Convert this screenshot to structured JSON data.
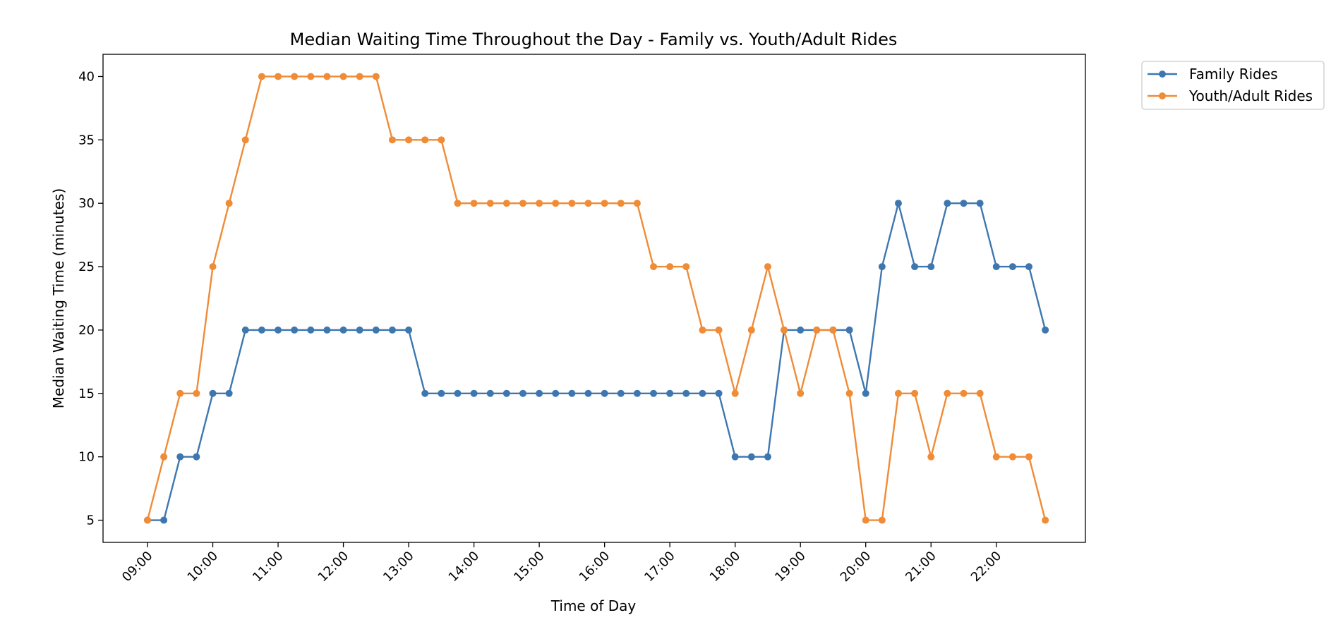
{
  "chart_data": {
    "type": "line",
    "title": "Median Waiting Time Throughout the Day - Family vs. Youth/Adult Rides",
    "xlabel": "Time of Day",
    "ylabel": "Median Waiting Time (minutes)",
    "x": [
      "09:00",
      "09:15",
      "09:30",
      "09:45",
      "10:00",
      "10:15",
      "10:30",
      "10:45",
      "11:00",
      "11:15",
      "11:30",
      "11:45",
      "12:00",
      "12:15",
      "12:30",
      "12:45",
      "13:00",
      "13:15",
      "13:30",
      "13:45",
      "14:00",
      "14:15",
      "14:30",
      "14:45",
      "15:00",
      "15:15",
      "15:30",
      "15:45",
      "16:00",
      "16:15",
      "16:30",
      "16:45",
      "17:00",
      "17:15",
      "17:30",
      "17:45",
      "18:00",
      "18:15",
      "18:30",
      "18:45",
      "19:00",
      "19:15",
      "19:30",
      "19:45",
      "20:00",
      "20:15",
      "20:30",
      "20:45",
      "21:00",
      "21:15",
      "21:30",
      "21:45",
      "22:00",
      "22:15",
      "22:30",
      "22:45"
    ],
    "x_ticks": [
      "09:00",
      "10:00",
      "11:00",
      "12:00",
      "13:00",
      "14:00",
      "15:00",
      "16:00",
      "17:00",
      "18:00",
      "19:00",
      "20:00",
      "21:00",
      "22:00"
    ],
    "y_ticks": [
      5,
      10,
      15,
      20,
      25,
      30,
      35,
      40
    ],
    "ylim": [
      3.25,
      41.75
    ],
    "grid": false,
    "legend": "outside-upper-right",
    "series": [
      {
        "name": "Family Rides",
        "color": "#3e77b0",
        "values": [
          5,
          5,
          10,
          10,
          15,
          15,
          20,
          20,
          20,
          20,
          20,
          20,
          20,
          20,
          20,
          20,
          20,
          15,
          15,
          15,
          15,
          15,
          15,
          15,
          15,
          15,
          15,
          15,
          15,
          15,
          15,
          15,
          15,
          15,
          15,
          15,
          10,
          10,
          10,
          20,
          20,
          20,
          20,
          20,
          15,
          25,
          30,
          25,
          25,
          30,
          30,
          30,
          25,
          25,
          25,
          20
        ]
      },
      {
        "name": "Youth/Adult Rides",
        "color": "#f08b36",
        "values": [
          5,
          10,
          15,
          15,
          25,
          30,
          35,
          40,
          40,
          40,
          40,
          40,
          40,
          40,
          40,
          35,
          35,
          35,
          35,
          30,
          30,
          30,
          30,
          30,
          30,
          30,
          30,
          30,
          30,
          30,
          30,
          25,
          25,
          25,
          20,
          20,
          15,
          20,
          25,
          20,
          15,
          20,
          20,
          15,
          5,
          5,
          15,
          15,
          10,
          15,
          15,
          15,
          10,
          10,
          10,
          5
        ]
      }
    ]
  }
}
